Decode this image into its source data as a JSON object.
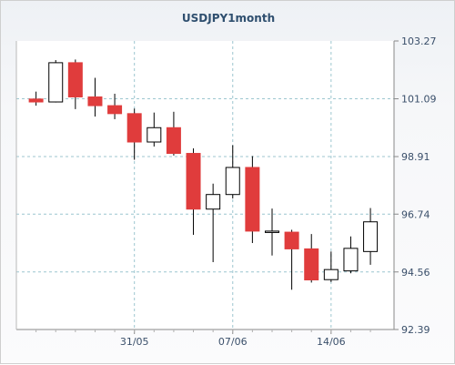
{
  "chart_data": {
    "type": "candlestick",
    "title": "USDJPY1month",
    "xlabel": "",
    "ylabel": "",
    "ylim": [
      92.39,
      103.27
    ],
    "y_ticks": [
      103.27,
      101.09,
      98.91,
      96.74,
      94.56,
      92.39
    ],
    "y_tick_labels": [
      "103.27",
      "101.09",
      "98.91",
      "96.74",
      "94.56",
      "92.39"
    ],
    "x_tick_labels": [
      "31/05",
      "07/06",
      "14/06"
    ],
    "x_tick_positions": [
      5,
      10,
      15
    ],
    "grid": true,
    "colors": {
      "up": "#ffffff",
      "down": "#e03c3c",
      "border": "#000000",
      "grid": "#9cc6cf"
    },
    "candles": [
      {
        "open": 101.08,
        "high": 101.36,
        "low": 100.83,
        "close": 100.97
      },
      {
        "open": 100.97,
        "high": 102.55,
        "low": 100.95,
        "close": 102.45
      },
      {
        "open": 102.45,
        "high": 102.57,
        "low": 100.7,
        "close": 101.16
      },
      {
        "open": 101.16,
        "high": 101.88,
        "low": 100.42,
        "close": 100.83
      },
      {
        "open": 100.83,
        "high": 101.28,
        "low": 100.32,
        "close": 100.53
      },
      {
        "open": 100.53,
        "high": 100.72,
        "low": 98.79,
        "close": 99.46
      },
      {
        "open": 99.46,
        "high": 100.57,
        "low": 99.29,
        "close": 100.0
      },
      {
        "open": 100.0,
        "high": 100.6,
        "low": 98.95,
        "close": 99.03
      },
      {
        "open": 99.03,
        "high": 99.22,
        "low": 95.96,
        "close": 96.93
      },
      {
        "open": 96.93,
        "high": 97.89,
        "low": 94.93,
        "close": 97.48
      },
      {
        "open": 97.48,
        "high": 99.34,
        "low": 97.33,
        "close": 98.5
      },
      {
        "open": 98.5,
        "high": 98.93,
        "low": 95.65,
        "close": 96.1
      },
      {
        "open": 96.1,
        "high": 96.95,
        "low": 95.18,
        "close": 96.1
      },
      {
        "open": 96.06,
        "high": 96.15,
        "low": 93.89,
        "close": 95.43
      },
      {
        "open": 95.43,
        "high": 95.99,
        "low": 94.16,
        "close": 94.26
      },
      {
        "open": 94.27,
        "high": 95.33,
        "low": 94.18,
        "close": 94.65
      },
      {
        "open": 94.6,
        "high": 95.9,
        "low": 94.51,
        "close": 95.45
      },
      {
        "open": 95.33,
        "high": 96.97,
        "low": 94.83,
        "close": 96.45
      }
    ]
  }
}
